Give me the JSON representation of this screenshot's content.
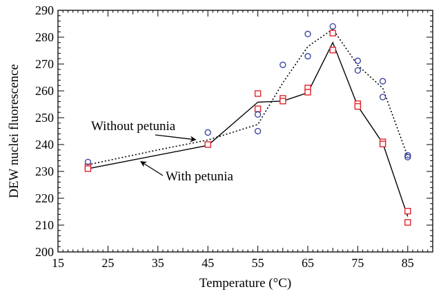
{
  "chart_data": {
    "type": "line",
    "title": "",
    "xlabel": "Temperature (°C)",
    "ylabel": "DEW nuclei fluorescence",
    "xlim": [
      15,
      90
    ],
    "ylim": [
      200,
      290
    ],
    "x_ticks": [
      15,
      25,
      35,
      45,
      55,
      65,
      75,
      85
    ],
    "y_ticks": [
      200,
      210,
      220,
      230,
      240,
      250,
      260,
      270,
      280,
      290
    ],
    "grid": false,
    "legend": "none",
    "series": [
      {
        "name": "With petunia",
        "line_style": "solid",
        "marker": "square",
        "marker_color": "#e0242a",
        "line_color": "#000000",
        "line_x": [
          21,
          45,
          55,
          60,
          65,
          70,
          75,
          80,
          85
        ],
        "line_y": [
          231,
          239.7,
          255.8,
          256.2,
          259.3,
          278,
          254.3,
          240.5,
          213.2
        ],
        "points": [
          [
            21,
            231.7
          ],
          [
            21,
            231.0
          ],
          [
            45,
            240.0
          ],
          [
            55,
            259.0
          ],
          [
            55,
            253.3
          ],
          [
            60,
            257.2
          ],
          [
            60,
            256.2
          ],
          [
            65,
            261.1
          ],
          [
            65,
            259.5
          ],
          [
            70,
            281.5
          ],
          [
            70,
            275.2
          ],
          [
            75,
            255.2
          ],
          [
            75,
            254.2
          ],
          [
            80,
            241.0
          ],
          [
            80,
            240.2
          ],
          [
            85,
            215.2
          ],
          [
            85,
            211.0
          ]
        ]
      },
      {
        "name": "Without petunia",
        "line_style": "dotted",
        "marker": "circle",
        "marker_color": "#2e3b9a",
        "line_color": "#000000",
        "line_x": [
          21,
          35,
          45,
          55,
          60,
          65,
          70,
          75,
          80,
          85
        ],
        "line_y": [
          232.5,
          238,
          241.7,
          247.5,
          263,
          276.5,
          283,
          269.5,
          261,
          235.5
        ],
        "points": [
          [
            21,
            233.5
          ],
          [
            45,
            244.5
          ],
          [
            55,
            251.2
          ],
          [
            55,
            245.0
          ],
          [
            60,
            269.7
          ],
          [
            65,
            281.2
          ],
          [
            65,
            272.9
          ],
          [
            70,
            284.0
          ],
          [
            75,
            271.2
          ],
          [
            75,
            267.6
          ],
          [
            80,
            263.6
          ],
          [
            80,
            257.7
          ],
          [
            85,
            236.0
          ],
          [
            85,
            235.3
          ]
        ]
      }
    ],
    "annotations": [
      {
        "text": "Without petunia",
        "series": "Without petunia",
        "arrow_to": [
          43,
          241.3
        ]
      },
      {
        "text": "With petunia",
        "series": "With petunia",
        "arrow_to": [
          31,
          234.2
        ]
      }
    ]
  }
}
